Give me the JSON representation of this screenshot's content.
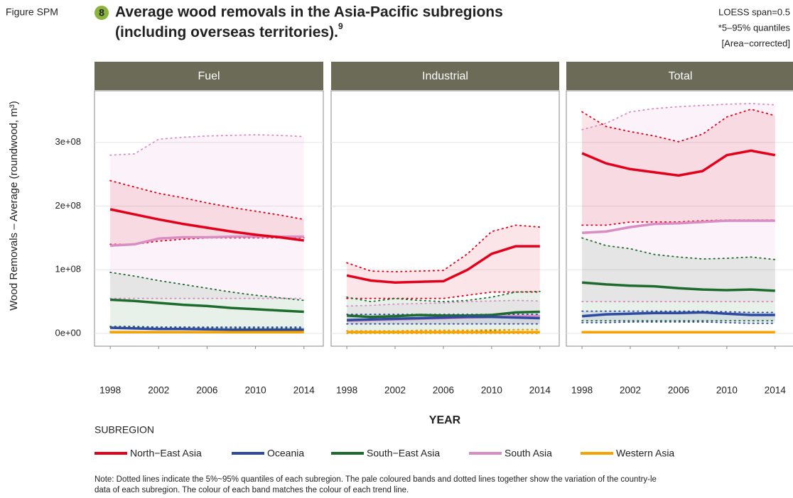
{
  "figure": {
    "label": "Figure SPM",
    "number": "8",
    "title": [
      "Average wood removals in the Asia-Pacific subregions",
      "(including overseas territories)."
    ],
    "footnote_ref": "9"
  },
  "method_notes": [
    "LOESS span=0.5",
    "*5–95% quantiles",
    "[Area−corrected]"
  ],
  "y_axis": {
    "label": "Wood Removals – Average (roundwood, m³)",
    "ylim": [
      -20000000.0,
      381000000.0
    ],
    "yticks": [
      {
        "value": 0,
        "label": "0e+00"
      },
      {
        "value": 100000000.0,
        "label": "1e+08"
      },
      {
        "value": 200000000.0,
        "label": "2e+08"
      },
      {
        "value": 300000000.0,
        "label": "3e+08"
      }
    ],
    "grid": true
  },
  "x_label": "YEAR",
  "legend": {
    "title": "SUBREGION",
    "entries": [
      {
        "name": "North−East Asia",
        "color": "#e3001b"
      },
      {
        "name": "Oceania",
        "color": "#2e4a9e"
      },
      {
        "name": "South−East Asia",
        "color": "#1e6b2e"
      },
      {
        "name": "South Asia",
        "color": "#d98ec3"
      },
      {
        "name": "Western Asia",
        "color": "#f5a300"
      }
    ]
  },
  "note": [
    "Note: Dotted lines indicate the 5%~95% quantiles of each subregion. The pale coloured bands and dotted lines together show the variation of the country-le",
    "data of each subregion. The colour of each band matches the colour of each trend line."
  ],
  "chart_data": [
    {
      "type": "line",
      "title": "Fuel",
      "x": [
        1998,
        2000,
        2002,
        2004,
        2006,
        2008,
        2010,
        2012,
        2014
      ],
      "xlim": [
        1996.7,
        2015.6
      ],
      "xticks": [
        1998,
        2002,
        2006,
        2010,
        2014
      ],
      "series": [
        {
          "values": [
            195000000.0,
            187000000.0,
            179000000.0,
            172000000.0,
            166000000.0,
            160000000.0,
            155000000.0,
            151000000.0,
            146000000.0
          ],
          "lower": [
            140000000.0,
            140000000.0,
            145000000.0,
            148000000.0,
            150000000.0,
            150000000.0,
            150000000.0,
            150000000.0,
            150000000.0
          ],
          "upper": [
            240000000.0,
            230000000.0,
            220000000.0,
            213000000.0,
            205000000.0,
            198000000.0,
            192000000.0,
            186000000.0,
            179000000.0
          ]
        },
        {
          "values": [
            9000000.0,
            8000000.0,
            7000000.0,
            7000000.0,
            6500000.0,
            6000000.0,
            6000000.0,
            6000000.0,
            6000000.0
          ],
          "lower": [
            3000000.0,
            3000000.0,
            3000000.0,
            3000000.0,
            3000000.0,
            3000000.0,
            3000000.0,
            3000000.0,
            3000000.0
          ],
          "upper": [
            10000000.0,
            10000000.0,
            10000000.0,
            10000000.0,
            10000000.0,
            10000000.0,
            10000000.0,
            10000000.0,
            10000000.0
          ]
        },
        {
          "values": [
            53000000.0,
            51000000.0,
            48000000.0,
            45000000.0,
            43000000.0,
            40000000.0,
            38000000.0,
            36000000.0,
            34000000.0
          ],
          "lower": [
            11000000.0,
            11000000.0,
            10000000.0,
            10000000.0,
            9000000.0,
            9000000.0,
            8000000.0,
            8000000.0,
            8000000.0
          ],
          "upper": [
            96000000.0,
            90000000.0,
            83000000.0,
            77000000.0,
            71000000.0,
            65000000.0,
            60000000.0,
            56000000.0,
            52000000.0
          ]
        },
        {
          "values": [
            138000000.0,
            140000000.0,
            149000000.0,
            151000000.0,
            151000000.0,
            152000000.0,
            152000000.0,
            152000000.0,
            152000000.0
          ],
          "lower": [
            55000000.0,
            55000000.0,
            55000000.0,
            55000000.0,
            55000000.0,
            55000000.0,
            55000000.0,
            55000000.0,
            55000000.0
          ],
          "upper": [
            280000000.0,
            282000000.0,
            305000000.0,
            308000000.0,
            310000000.0,
            311000000.0,
            312000000.0,
            311000000.0,
            309000000.0
          ]
        },
        {
          "values": [
            2000000.0,
            2000000.0,
            2000000.0,
            2000000.0,
            2000000.0,
            2000000.0,
            2000000.0,
            2000000.0,
            2000000.0
          ],
          "lower": [
            1000000.0,
            1000000.0,
            1000000.0,
            1000000.0,
            1000000.0,
            1000000.0,
            1000000.0,
            1000000.0,
            1000000.0
          ],
          "upper": [
            3000000.0,
            3000000.0,
            3000000.0,
            3000000.0,
            3000000.0,
            3000000.0,
            3000000.0,
            3000000.0,
            3000000.0
          ]
        }
      ]
    },
    {
      "type": "line",
      "title": "Industrial",
      "x": [
        1998,
        2000,
        2002,
        2004,
        2006,
        2008,
        2010,
        2012,
        2014
      ],
      "xlim": [
        1996.7,
        2015.6
      ],
      "xticks": [
        1998,
        2002,
        2006,
        2010,
        2014
      ],
      "series": [
        {
          "values": [
            91000000.0,
            83000000.0,
            80000000.0,
            81000000.0,
            82000000.0,
            100000000.0,
            125000000.0,
            137000000.0,
            137000000.0
          ],
          "lower": [
            55000000.0,
            55000000.0,
            55000000.0,
            55000000.0,
            55000000.0,
            60000000.0,
            65000000.0,
            65000000.0,
            65000000.0
          ],
          "upper": [
            111000000.0,
            98000000.0,
            97000000.0,
            98000000.0,
            99000000.0,
            125000000.0,
            160000000.0,
            170000000.0,
            167000000.0
          ]
        },
        {
          "values": [
            21000000.0,
            22000000.0,
            23000000.0,
            24000000.0,
            25000000.0,
            26000000.0,
            26000000.0,
            25000000.0,
            24000000.0
          ],
          "lower": [
            15000000.0,
            15000000.0,
            15000000.0,
            15000000.0,
            15000000.0,
            15000000.0,
            15000000.0,
            15000000.0,
            15000000.0
          ],
          "upper": [
            30000000.0,
            30000000.0,
            30000000.0,
            30000000.0,
            30000000.0,
            30000000.0,
            30000000.0,
            30000000.0,
            30000000.0
          ]
        },
        {
          "values": [
            28000000.0,
            26000000.0,
            27000000.0,
            29000000.0,
            28000000.0,
            28000000.0,
            29000000.0,
            33000000.0,
            34000000.0
          ],
          "lower": [
            4000000.0,
            4000000.0,
            4000000.0,
            5000000.0,
            5000000.0,
            5000000.0,
            5000000.0,
            6000000.0,
            6000000.0
          ],
          "upper": [
            57000000.0,
            50000000.0,
            55000000.0,
            52000000.0,
            50000000.0,
            52000000.0,
            57000000.0,
            65000000.0,
            66000000.0
          ]
        },
        {
          "values": [
            20000000.0,
            21000000.0,
            22000000.0,
            23000000.0,
            24000000.0,
            25000000.0,
            26000000.0,
            27000000.0,
            27000000.0
          ],
          "lower": [
            15000000.0,
            15000000.0,
            15000000.0,
            15000000.0,
            15000000.0,
            15000000.0,
            15000000.0,
            15000000.0,
            15000000.0
          ],
          "upper": [
            43000000.0,
            44000000.0,
            46000000.0,
            47000000.0,
            48000000.0,
            50000000.0,
            51000000.0,
            52000000.0,
            51000000.0
          ]
        },
        {
          "values": [
            2000000.0,
            2000000.0,
            2000000.0,
            2000000.0,
            2000000.0,
            2000000.0,
            2000000.0,
            2000000.0,
            2000000.0
          ],
          "lower": [
            0,
            0,
            0,
            0,
            0,
            0,
            0,
            0,
            0
          ],
          "upper": [
            4000000.0,
            4000000.0,
            4000000.0,
            5000000.0,
            5000000.0,
            5000000.0,
            6000000.0,
            6000000.0,
            6000000.0
          ]
        }
      ]
    },
    {
      "type": "line",
      "title": "Total",
      "x": [
        1998,
        2000,
        2002,
        2004,
        2006,
        2008,
        2010,
        2012,
        2014
      ],
      "xlim": [
        1996.7,
        2015.6
      ],
      "xticks": [
        1998,
        2002,
        2006,
        2010,
        2014
      ],
      "series": [
        {
          "values": [
            283000000.0,
            267000000.0,
            258000000.0,
            253000000.0,
            248000000.0,
            255000000.0,
            280000000.0,
            287000000.0,
            280000000.0
          ],
          "lower": [
            170000000.0,
            170000000.0,
            175000000.0,
            175000000.0,
            175000000.0,
            177000000.0,
            178000000.0,
            178000000.0,
            178000000.0
          ],
          "upper": [
            348000000.0,
            325000000.0,
            317000000.0,
            310000000.0,
            301000000.0,
            313000000.0,
            340000000.0,
            352000000.0,
            342000000.0
          ]
        },
        {
          "values": [
            27000000.0,
            30000000.0,
            31000000.0,
            32000000.0,
            32000000.0,
            33000000.0,
            31000000.0,
            29000000.0,
            29000000.0
          ],
          "lower": [
            17000000.0,
            17000000.0,
            18000000.0,
            18000000.0,
            18000000.0,
            18000000.0,
            17000000.0,
            16000000.0,
            16000000.0
          ],
          "upper": [
            35000000.0,
            35000000.0,
            35000000.0,
            35000000.0,
            35000000.0,
            35000000.0,
            34000000.0,
            33000000.0,
            33000000.0
          ]
        },
        {
          "values": [
            80000000.0,
            77000000.0,
            75000000.0,
            74000000.0,
            71000000.0,
            69000000.0,
            68000000.0,
            69000000.0,
            67000000.0
          ],
          "lower": [
            20000000.0,
            20000000.0,
            20000000.0,
            20000000.0,
            20000000.0,
            20000000.0,
            20000000.0,
            20000000.0,
            20000000.0
          ],
          "upper": [
            150000000.0,
            138000000.0,
            133000000.0,
            124000000.0,
            120000000.0,
            117000000.0,
            118000000.0,
            120000000.0,
            116000000.0
          ]
        },
        {
          "values": [
            158000000.0,
            160000000.0,
            167000000.0,
            172000000.0,
            173000000.0,
            175000000.0,
            177000000.0,
            177000000.0,
            177000000.0
          ],
          "lower": [
            50000000.0,
            50000000.0,
            50000000.0,
            50000000.0,
            50000000.0,
            50000000.0,
            50000000.0,
            50000000.0,
            50000000.0
          ],
          "upper": [
            320000000.0,
            330000000.0,
            348000000.0,
            353000000.0,
            356000000.0,
            358000000.0,
            360000000.0,
            361000000.0,
            359000000.0
          ]
        },
        {
          "values": [
            2000000.0,
            2000000.0,
            2000000.0,
            2000000.0,
            2000000.0,
            2000000.0,
            2000000.0,
            2000000.0,
            2000000.0
          ],
          "lower": [
            1000000.0,
            1000000.0,
            1000000.0,
            1000000.0,
            1000000.0,
            1000000.0,
            1000000.0,
            1000000.0,
            1000000.0
          ],
          "upper": [
            3000000.0,
            3000000.0,
            3000000.0,
            3000000.0,
            3000000.0,
            3000000.0,
            3000000.0,
            3000000.0,
            3000000.0
          ]
        }
      ]
    }
  ]
}
